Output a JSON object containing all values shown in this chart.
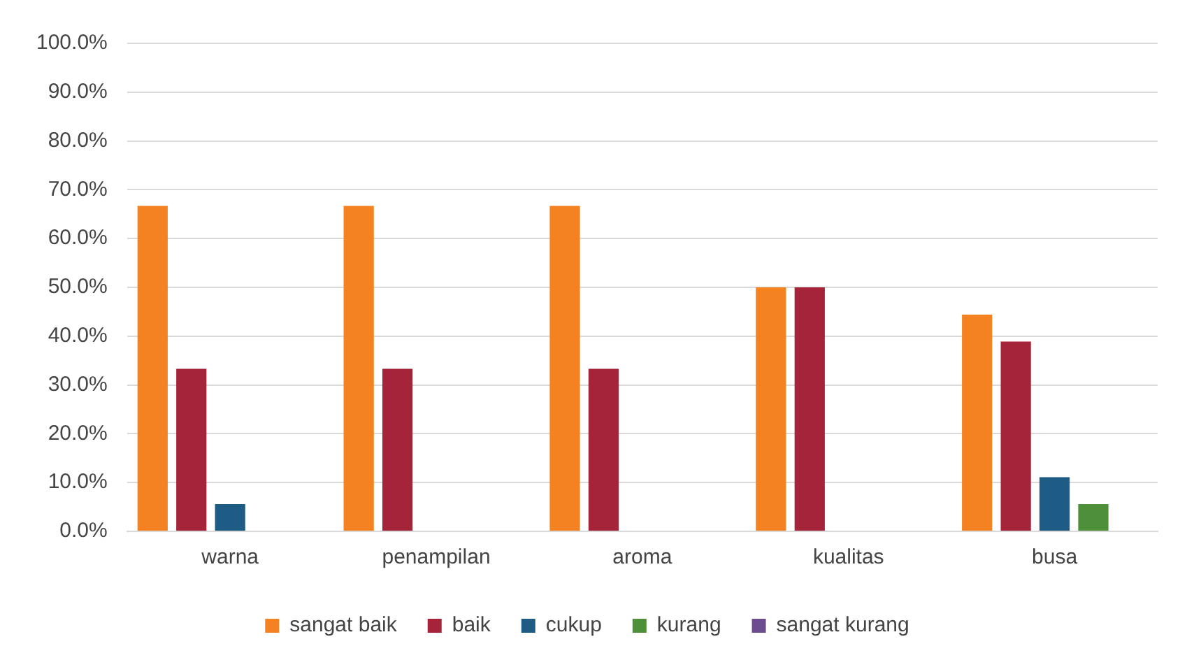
{
  "chart_data": {
    "type": "bar",
    "categories": [
      "warna",
      "penampilan",
      "aroma",
      "kualitas",
      "busa"
    ],
    "series": [
      {
        "name": "sangat baik",
        "color": "#f58220",
        "values": [
          66.7,
          66.7,
          66.7,
          50,
          44.4
        ]
      },
      {
        "name": "baik",
        "color": "#a5243a",
        "values": [
          33.3,
          33.3,
          33.3,
          50,
          38.9
        ]
      },
      {
        "name": "cukup",
        "color": "#1f5c85",
        "values": [
          5.6,
          0,
          0,
          0,
          11.1
        ]
      },
      {
        "name": "kurang",
        "color": "#4e8f3a",
        "values": [
          0,
          0,
          0,
          0,
          5.6
        ]
      },
      {
        "name": "sangat kurang",
        "color": "#6b4c8f",
        "values": [
          0,
          0,
          0,
          0,
          0
        ]
      }
    ],
    "ylim": [
      0,
      100
    ],
    "yticks": [
      {
        "value": 0,
        "label": "0.0%"
      },
      {
        "value": 10,
        "label": "10.0%"
      },
      {
        "value": 20,
        "label": "20.0%"
      },
      {
        "value": 30,
        "label": "30.0%"
      },
      {
        "value": 40,
        "label": "40.0%"
      },
      {
        "value": 50,
        "label": "50.0%"
      },
      {
        "value": 60,
        "label": "60.0%"
      },
      {
        "value": 70,
        "label": "70.0%"
      },
      {
        "value": 80,
        "label": "80.0%"
      },
      {
        "value": 90,
        "label": "90.0%"
      },
      {
        "value": 100,
        "label": "100.0%"
      }
    ],
    "grid": "y",
    "legend": "bottom"
  }
}
